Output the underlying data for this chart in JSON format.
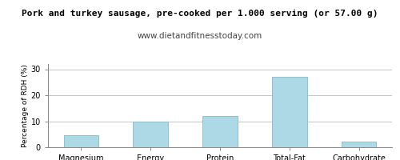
{
  "title": "Pork and turkey sausage, pre-cooked per 1.000 serving (or 57.00 g)",
  "subtitle": "www.dietandfitnesstoday.com",
  "categories": [
    "Magnesium",
    "Energy",
    "Protein",
    "Total-Fat",
    "Carbohydrate"
  ],
  "values": [
    4.5,
    10.0,
    12.0,
    27.0,
    2.2
  ],
  "bar_color": "#add8e6",
  "bar_edge_color": "#88b8cc",
  "ylabel": "Percentage of RDH (%)",
  "ylim": [
    0,
    32
  ],
  "yticks": [
    0,
    10,
    20,
    30
  ],
  "background_color": "#ffffff",
  "plot_bg_color": "#ffffff",
  "grid_color": "#bbbbbb",
  "title_fontsize": 8.0,
  "subtitle_fontsize": 7.5,
  "tick_fontsize": 7.0,
  "ylabel_fontsize": 6.5,
  "border_color": "#888888",
  "title_font": "monospace",
  "subtitle_font": "sans-serif"
}
